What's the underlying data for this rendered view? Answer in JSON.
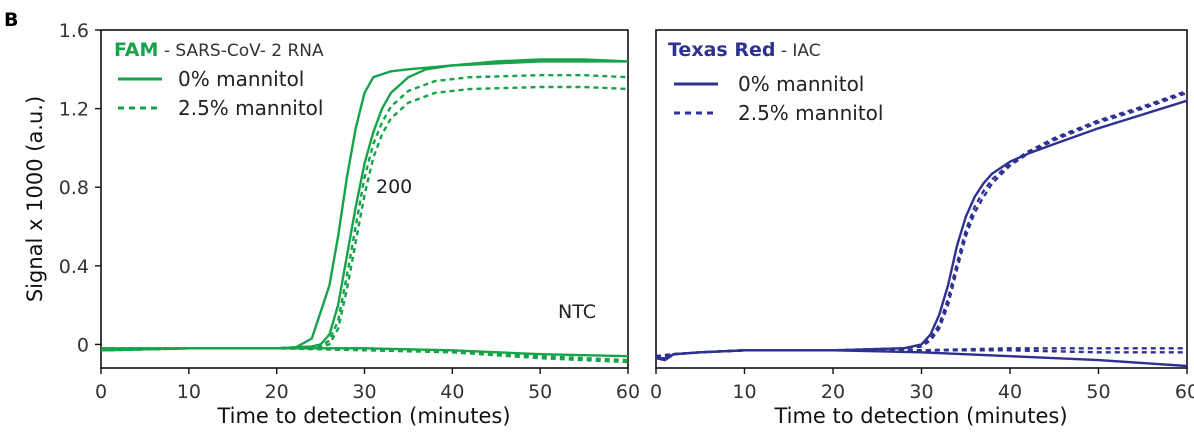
{
  "panel_label": "B",
  "colors": {
    "green": "#16a34a",
    "blue": "#2e3192"
  },
  "chart_data": [
    {
      "type": "line",
      "legend": {
        "title_bold": "FAM",
        "title_rest": " - SARS-CoV- 2 RNA",
        "items": [
          "0% mannitol",
          "2.5% mannitol"
        ]
      },
      "xlabel": "Time to detection (minutes)",
      "ylabel": "Signal x 1000 (a.u.)",
      "xlim": [
        0,
        60
      ],
      "ylim": [
        -0.12,
        1.6
      ],
      "xticks": [
        "0",
        "10",
        "20",
        "30",
        "40",
        "50",
        "60"
      ],
      "yticks": [
        "0",
        "0.4",
        "0.8",
        "1.2",
        "1.6"
      ],
      "annotations": [
        "200",
        "NTC"
      ],
      "series": [
        {
          "color": "green",
          "dash": false,
          "points": [
            [
              0,
              -0.03
            ],
            [
              10,
              -0.02
            ],
            [
              20,
              -0.02
            ],
            [
              22,
              -0.02
            ],
            [
              24,
              0.03
            ],
            [
              26,
              0.3
            ],
            [
              27,
              0.55
            ],
            [
              28,
              0.85
            ],
            [
              29,
              1.1
            ],
            [
              30,
              1.28
            ],
            [
              31,
              1.36
            ],
            [
              33,
              1.39
            ],
            [
              35,
              1.4
            ],
            [
              40,
              1.42
            ],
            [
              45,
              1.44
            ],
            [
              50,
              1.45
            ],
            [
              55,
              1.45
            ],
            [
              60,
              1.44
            ]
          ]
        },
        {
          "color": "green",
          "dash": false,
          "points": [
            [
              0,
              -0.03
            ],
            [
              10,
              -0.02
            ],
            [
              20,
              -0.02
            ],
            [
              24,
              -0.01
            ],
            [
              25,
              0.0
            ],
            [
              26,
              0.05
            ],
            [
              27,
              0.2
            ],
            [
              28,
              0.45
            ],
            [
              29,
              0.7
            ],
            [
              30,
              0.92
            ],
            [
              31,
              1.08
            ],
            [
              32,
              1.2
            ],
            [
              33,
              1.28
            ],
            [
              35,
              1.36
            ],
            [
              37,
              1.4
            ],
            [
              40,
              1.42
            ],
            [
              45,
              1.43
            ],
            [
              50,
              1.44
            ],
            [
              55,
              1.44
            ],
            [
              60,
              1.44
            ]
          ]
        },
        {
          "color": "green",
          "dash": true,
          "points": [
            [
              0,
              -0.03
            ],
            [
              10,
              -0.02
            ],
            [
              20,
              -0.02
            ],
            [
              25,
              -0.01
            ],
            [
              26,
              0.02
            ],
            [
              27,
              0.12
            ],
            [
              28,
              0.35
            ],
            [
              29,
              0.6
            ],
            [
              30,
              0.85
            ],
            [
              31,
              1.02
            ],
            [
              32,
              1.13
            ],
            [
              33,
              1.21
            ],
            [
              35,
              1.29
            ],
            [
              38,
              1.34
            ],
            [
              42,
              1.36
            ],
            [
              50,
              1.37
            ],
            [
              55,
              1.37
            ],
            [
              60,
              1.36
            ]
          ]
        },
        {
          "color": "green",
          "dash": true,
          "points": [
            [
              0,
              -0.03
            ],
            [
              10,
              -0.02
            ],
            [
              20,
              -0.02
            ],
            [
              25,
              -0.01
            ],
            [
              26,
              0.0
            ],
            [
              27,
              0.08
            ],
            [
              28,
              0.28
            ],
            [
              29,
              0.52
            ],
            [
              30,
              0.76
            ],
            [
              31,
              0.95
            ],
            [
              32,
              1.07
            ],
            [
              33,
              1.15
            ],
            [
              35,
              1.23
            ],
            [
              38,
              1.28
            ],
            [
              42,
              1.3
            ],
            [
              50,
              1.31
            ],
            [
              55,
              1.31
            ],
            [
              60,
              1.3
            ]
          ]
        },
        {
          "color": "green",
          "dash": false,
          "points": [
            [
              0,
              -0.02
            ],
            [
              10,
              -0.02
            ],
            [
              20,
              -0.02
            ],
            [
              30,
              -0.02
            ],
            [
              40,
              -0.03
            ],
            [
              50,
              -0.05
            ],
            [
              60,
              -0.06
            ]
          ]
        },
        {
          "color": "green",
          "dash": true,
          "points": [
            [
              0,
              -0.03
            ],
            [
              10,
              -0.02
            ],
            [
              20,
              -0.02
            ],
            [
              30,
              -0.03
            ],
            [
              40,
              -0.04
            ],
            [
              50,
              -0.06
            ],
            [
              60,
              -0.08
            ]
          ]
        },
        {
          "color": "green",
          "dash": true,
          "points": [
            [
              0,
              -0.02
            ],
            [
              10,
              -0.02
            ],
            [
              20,
              -0.02
            ],
            [
              30,
              -0.02
            ],
            [
              40,
              -0.04
            ],
            [
              50,
              -0.07
            ],
            [
              60,
              -0.09
            ]
          ]
        }
      ]
    },
    {
      "type": "line",
      "legend": {
        "title_bold": "Texas Red",
        "title_rest": " - IAC",
        "items": [
          "0% mannitol",
          "2.5% mannitol"
        ]
      },
      "xlabel": "Time to detection (minutes)",
      "ylabel": "",
      "xlim": [
        0,
        60
      ],
      "ylim": [
        -0.12,
        1.6
      ],
      "xticks": [
        "0",
        "10",
        "20",
        "30",
        "40",
        "50",
        "60"
      ],
      "yticks": [],
      "annotations": [],
      "series": [
        {
          "color": "blue",
          "dash": false,
          "points": [
            [
              0,
              -0.07
            ],
            [
              1,
              -0.07
            ],
            [
              2,
              -0.05
            ],
            [
              5,
              -0.04
            ],
            [
              10,
              -0.03
            ],
            [
              20,
              -0.03
            ],
            [
              28,
              -0.02
            ],
            [
              30,
              0.0
            ],
            [
              31,
              0.05
            ],
            [
              32,
              0.15
            ],
            [
              33,
              0.3
            ],
            [
              34,
              0.5
            ],
            [
              35,
              0.65
            ],
            [
              36,
              0.75
            ],
            [
              37,
              0.82
            ],
            [
              38,
              0.87
            ],
            [
              40,
              0.93
            ],
            [
              42,
              0.97
            ],
            [
              45,
              1.02
            ],
            [
              50,
              1.1
            ],
            [
              55,
              1.17
            ],
            [
              60,
              1.24
            ]
          ]
        },
        {
          "color": "blue",
          "dash": true,
          "points": [
            [
              0,
              -0.06
            ],
            [
              2,
              -0.05
            ],
            [
              5,
              -0.04
            ],
            [
              10,
              -0.03
            ],
            [
              20,
              -0.03
            ],
            [
              28,
              -0.02
            ],
            [
              30,
              -0.01
            ],
            [
              31,
              0.02
            ],
            [
              32,
              0.08
            ],
            [
              33,
              0.2
            ],
            [
              34,
              0.38
            ],
            [
              35,
              0.55
            ],
            [
              36,
              0.67
            ],
            [
              37,
              0.75
            ],
            [
              38,
              0.82
            ],
            [
              40,
              0.91
            ],
            [
              42,
              0.97
            ],
            [
              45,
              1.04
            ],
            [
              50,
              1.13
            ],
            [
              55,
              1.2
            ],
            [
              60,
              1.28
            ]
          ]
        },
        {
          "color": "blue",
          "dash": true,
          "points": [
            [
              0,
              -0.06
            ],
            [
              2,
              -0.05
            ],
            [
              5,
              -0.04
            ],
            [
              10,
              -0.03
            ],
            [
              20,
              -0.03
            ],
            [
              28,
              -0.02
            ],
            [
              30,
              -0.01
            ],
            [
              31,
              0.03
            ],
            [
              32,
              0.1
            ],
            [
              33,
              0.23
            ],
            [
              34,
              0.41
            ],
            [
              35,
              0.58
            ],
            [
              36,
              0.7
            ],
            [
              37,
              0.78
            ],
            [
              38,
              0.84
            ],
            [
              40,
              0.92
            ],
            [
              42,
              0.98
            ],
            [
              45,
              1.05
            ],
            [
              50,
              1.14
            ],
            [
              55,
              1.21
            ],
            [
              60,
              1.29
            ]
          ]
        },
        {
          "color": "blue",
          "dash": false,
          "points": [
            [
              0,
              -0.07
            ],
            [
              1,
              -0.08
            ],
            [
              2,
              -0.05
            ],
            [
              5,
              -0.04
            ],
            [
              10,
              -0.03
            ],
            [
              20,
              -0.03
            ],
            [
              30,
              -0.04
            ],
            [
              40,
              -0.06
            ],
            [
              50,
              -0.08
            ],
            [
              60,
              -0.11
            ]
          ]
        },
        {
          "color": "blue",
          "dash": true,
          "points": [
            [
              0,
              -0.06
            ],
            [
              2,
              -0.05
            ],
            [
              5,
              -0.04
            ],
            [
              10,
              -0.03
            ],
            [
              20,
              -0.03
            ],
            [
              30,
              -0.03
            ],
            [
              40,
              -0.02
            ],
            [
              50,
              -0.02
            ],
            [
              60,
              -0.02
            ]
          ]
        },
        {
          "color": "blue",
          "dash": true,
          "points": [
            [
              0,
              -0.06
            ],
            [
              2,
              -0.05
            ],
            [
              5,
              -0.04
            ],
            [
              10,
              -0.03
            ],
            [
              20,
              -0.03
            ],
            [
              30,
              -0.03
            ],
            [
              40,
              -0.03
            ],
            [
              50,
              -0.04
            ],
            [
              60,
              -0.04
            ]
          ]
        }
      ]
    }
  ]
}
